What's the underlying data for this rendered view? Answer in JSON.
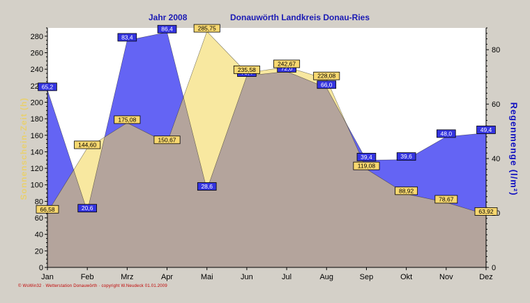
{
  "chart_data": {
    "type": "area",
    "title_left": "Jahr 2008",
    "title_right": "Donauwörth Landkreis Donau-Ries",
    "footer": "© WsWin32 · Wetterstation Donauwörth · copyright W.Neudeck 01.01.2009",
    "ylabel_left": "Sonnenschein-Zeit (h)",
    "ylabel_right": "Regenmenge (l/m²)",
    "categories": [
      "Jan",
      "Feb",
      "Mrz",
      "Apr",
      "Mai",
      "Jun",
      "Jul",
      "Aug",
      "Sep",
      "Okt",
      "Nov",
      "Dez"
    ],
    "ylim_left": [
      0,
      290
    ],
    "yticks_left": [
      0,
      20,
      40,
      60,
      80,
      100,
      120,
      140,
      160,
      180,
      200,
      220,
      240,
      260,
      280
    ],
    "ylim_right": [
      0,
      88
    ],
    "yticks_right": [
      0,
      20,
      40,
      60,
      80
    ],
    "grid": false,
    "series": [
      {
        "name": "Sonnenschein-Zeit",
        "axis": "left",
        "color": "#f8e8a0",
        "label_color": "#f8d870",
        "values": [
          66.58,
          144.6,
          175.08,
          150.67,
          285.75,
          235.58,
          242.67,
          228.08,
          119.08,
          88.92,
          78.67,
          63.92
        ],
        "labels": [
          "66,58",
          "144,60",
          "175,08",
          "150,67",
          "285,75",
          "235,58",
          "242,67",
          "228,08",
          "119,08",
          "88,92",
          "78,67",
          "63,92"
        ]
      },
      {
        "name": "Regenmenge",
        "axis": "right",
        "color": "#6464f4",
        "label_color": "#3434e0",
        "values": [
          65.2,
          20.6,
          83.4,
          86.4,
          28.6,
          70.4,
          72.0,
          66.0,
          39.4,
          39.6,
          48.0,
          49.4
        ],
        "labels": [
          "65,2",
          "20,6",
          "83,4",
          "86,4",
          "28,6",
          "70,4",
          "72,0",
          "66,0",
          "39,4",
          "39,6",
          "48,0",
          "49,4"
        ]
      }
    ],
    "overlap_color": "#b4a49c"
  }
}
